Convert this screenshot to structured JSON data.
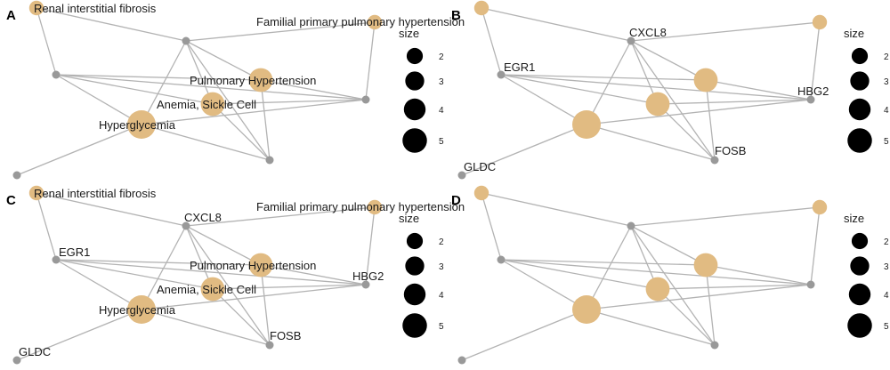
{
  "panels": [
    {
      "letter": "A",
      "legend_title": "size",
      "legend_values": [
        2,
        3,
        4,
        5
      ],
      "nodes": [
        {
          "id": "renal",
          "kind": "disease",
          "size": 2,
          "label": "Renal interstitial fibrosis"
        },
        {
          "id": "familial",
          "kind": "disease",
          "size": 2,
          "label": "Familial primary pulmonary hypertension"
        },
        {
          "id": "cxcl8",
          "kind": "gene",
          "label": ""
        },
        {
          "id": "egr1",
          "kind": "gene",
          "label": ""
        },
        {
          "id": "ph",
          "kind": "disease",
          "size": 4,
          "label": "Pulmonary Hypertension"
        },
        {
          "id": "hbg2",
          "kind": "gene",
          "label": ""
        },
        {
          "id": "anemia",
          "kind": "disease",
          "size": 4,
          "label": "Anemia, Sickle Cell"
        },
        {
          "id": "hyper",
          "kind": "disease",
          "size": 5,
          "label": "Hyperglycemia"
        },
        {
          "id": "fosb",
          "kind": "gene",
          "label": ""
        },
        {
          "id": "gldc",
          "kind": "gene",
          "label": ""
        }
      ]
    },
    {
      "letter": "B",
      "legend_title": "size",
      "legend_values": [
        2,
        3,
        4,
        5
      ],
      "nodes": [
        {
          "id": "renal",
          "kind": "disease",
          "size": 2,
          "label": ""
        },
        {
          "id": "familial",
          "kind": "disease",
          "size": 2,
          "label": ""
        },
        {
          "id": "cxcl8",
          "kind": "gene",
          "label": "CXCL8"
        },
        {
          "id": "egr1",
          "kind": "gene",
          "label": "EGR1"
        },
        {
          "id": "ph",
          "kind": "disease",
          "size": 4,
          "label": ""
        },
        {
          "id": "hbg2",
          "kind": "gene",
          "label": "HBG2"
        },
        {
          "id": "anemia",
          "kind": "disease",
          "size": 4,
          "label": ""
        },
        {
          "id": "hyper",
          "kind": "disease",
          "size": 5,
          "label": ""
        },
        {
          "id": "fosb",
          "kind": "gene",
          "label": "FOSB"
        },
        {
          "id": "gldc",
          "kind": "gene",
          "label": "GLDC"
        }
      ]
    },
    {
      "letter": "C",
      "legend_title": "size",
      "legend_values": [
        2,
        3,
        4,
        5
      ],
      "nodes": [
        {
          "id": "renal",
          "kind": "disease",
          "size": 2,
          "label": "Renal interstitial fibrosis"
        },
        {
          "id": "familial",
          "kind": "disease",
          "size": 2,
          "label": "Familial primary pulmonary hypertension"
        },
        {
          "id": "cxcl8",
          "kind": "gene",
          "label": "CXCL8"
        },
        {
          "id": "egr1",
          "kind": "gene",
          "label": "EGR1"
        },
        {
          "id": "ph",
          "kind": "disease",
          "size": 4,
          "label": "Pulmonary Hypertension"
        },
        {
          "id": "hbg2",
          "kind": "gene",
          "label": "HBG2"
        },
        {
          "id": "anemia",
          "kind": "disease",
          "size": 4,
          "label": "Anemia, Sickle Cell"
        },
        {
          "id": "hyper",
          "kind": "disease",
          "size": 5,
          "label": "Hyperglycemia"
        },
        {
          "id": "fosb",
          "kind": "gene",
          "label": "FOSB"
        },
        {
          "id": "gldc",
          "kind": "gene",
          "label": "GLDC"
        }
      ]
    },
    {
      "letter": "D",
      "legend_title": "size",
      "legend_values": [
        2,
        3,
        4,
        5
      ],
      "nodes": [
        {
          "id": "renal",
          "kind": "disease",
          "size": 2,
          "label": ""
        },
        {
          "id": "familial",
          "kind": "disease",
          "size": 2,
          "label": ""
        },
        {
          "id": "cxcl8",
          "kind": "gene",
          "label": ""
        },
        {
          "id": "egr1",
          "kind": "gene",
          "label": ""
        },
        {
          "id": "ph",
          "kind": "disease",
          "size": 4,
          "label": ""
        },
        {
          "id": "hbg2",
          "kind": "gene",
          "label": ""
        },
        {
          "id": "anemia",
          "kind": "disease",
          "size": 4,
          "label": ""
        },
        {
          "id": "hyper",
          "kind": "disease",
          "size": 5,
          "label": ""
        },
        {
          "id": "fosb",
          "kind": "gene",
          "label": ""
        },
        {
          "id": "gldc",
          "kind": "gene",
          "label": ""
        }
      ]
    }
  ],
  "edges": [
    [
      "renal",
      "cxcl8"
    ],
    [
      "renal",
      "egr1"
    ],
    [
      "familial",
      "cxcl8"
    ],
    [
      "familial",
      "hbg2"
    ],
    [
      "cxcl8",
      "ph"
    ],
    [
      "cxcl8",
      "anemia"
    ],
    [
      "cxcl8",
      "hyper"
    ],
    [
      "cxcl8",
      "fosb"
    ],
    [
      "egr1",
      "ph"
    ],
    [
      "egr1",
      "anemia"
    ],
    [
      "egr1",
      "hbg2"
    ],
    [
      "egr1",
      "hyper"
    ],
    [
      "ph",
      "hbg2"
    ],
    [
      "ph",
      "fosb"
    ],
    [
      "anemia",
      "hbg2"
    ],
    [
      "anemia",
      "fosb"
    ],
    [
      "hyper",
      "hbg2"
    ],
    [
      "hyper",
      "fosb"
    ],
    [
      "hyper",
      "gldc"
    ]
  ],
  "colors": {
    "gene": "#999999",
    "disease": "#e1bb82",
    "edge": "#b3b3b3"
  }
}
